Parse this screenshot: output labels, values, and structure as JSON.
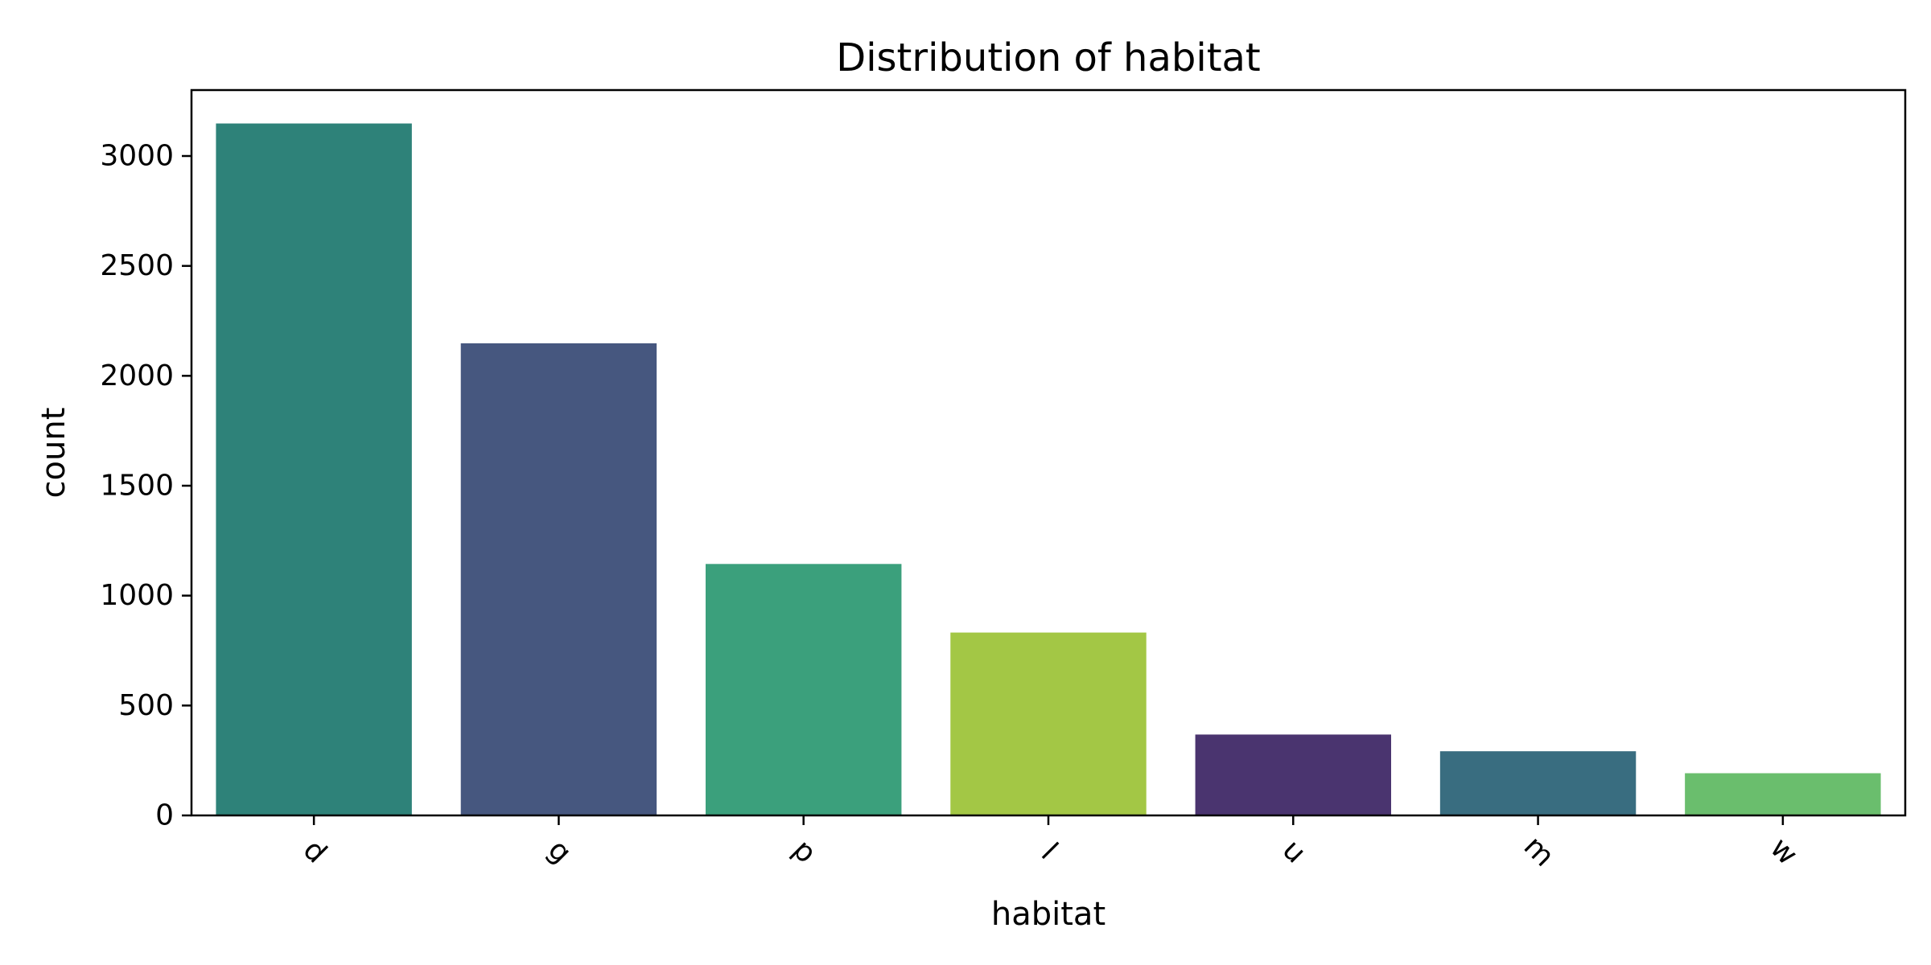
{
  "chart_data": {
    "type": "bar",
    "title": "Distribution of habitat",
    "xlabel": "habitat",
    "ylabel": "count",
    "categories": [
      "d",
      "g",
      "p",
      "l",
      "u",
      "m",
      "w"
    ],
    "values": [
      3148,
      2148,
      1144,
      832,
      368,
      292,
      192
    ],
    "colors": [
      "#2e8279",
      "#46577f",
      "#3ba07c",
      "#a3c745",
      "#4a346f",
      "#396d80",
      "#6abe6d"
    ],
    "ylim": [
      0,
      3300
    ],
    "yticks": [
      0,
      500,
      1000,
      1500,
      2000,
      2500,
      3000
    ],
    "grid": false,
    "legend": "none"
  }
}
